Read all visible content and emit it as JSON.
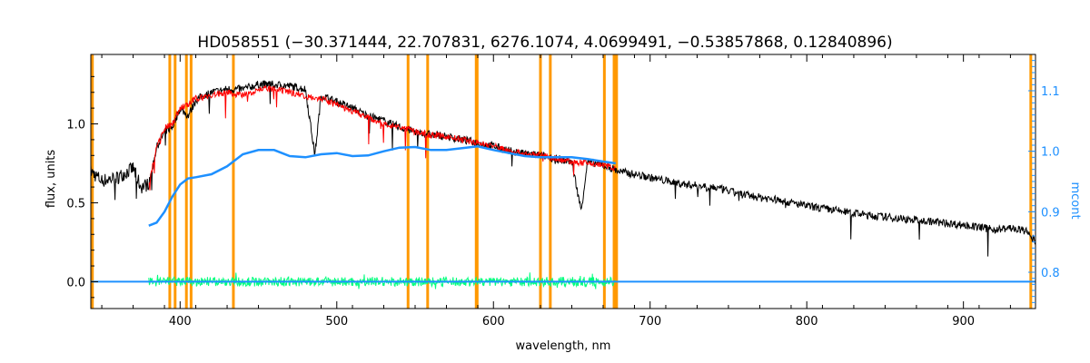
{
  "chart_data": {
    "type": "line",
    "title": "HD058551   (−30.371444, 22.707831, 6276.1074, 4.0699491, −0.53857868, 0.12840896)",
    "xlabel": "wavelength, nm",
    "ylabel": "flux, units",
    "ylabel_right": "mcont",
    "xlim": [
      343,
      946
    ],
    "ylim": [
      -0.17,
      1.44
    ],
    "ylim_right": [
      0.74,
      1.16
    ],
    "x_ticks": [
      400,
      500,
      600,
      700,
      800,
      900
    ],
    "x_tick_labels": [
      "400",
      "500",
      "600",
      "700",
      "800",
      "900"
    ],
    "y_ticks": [
      0.0,
      0.5,
      1.0
    ],
    "y_tick_labels": [
      "0.0",
      "0.5",
      "1.0"
    ],
    "y_right_ticks": [
      0.8,
      0.9,
      1.0,
      1.1
    ],
    "y_right_tick_labels": [
      "0.8",
      "0.9",
      "1.0",
      "1.1"
    ],
    "grid": false,
    "vertical_lines": [
      344,
      393.4,
      396.8,
      404,
      407,
      434,
      545.5,
      558,
      589,
      589.6,
      630,
      636.3,
      670.8,
      677,
      678.6,
      943
    ],
    "series": [
      {
        "role": "observed",
        "color": "#000000",
        "x": [
          343,
          350,
          360,
          370,
          375,
          380,
          385,
          390,
          395,
          400,
          405,
          410,
          415,
          420,
          430,
          440,
          450,
          460,
          470,
          480,
          486,
          490,
          500,
          510,
          520,
          530,
          540,
          550,
          560,
          570,
          580,
          590,
          600,
          610,
          620,
          630,
          640,
          650,
          656,
          660,
          670,
          680,
          700,
          720,
          740,
          760,
          780,
          800,
          820,
          840,
          860,
          880,
          900,
          920,
          930,
          940,
          946
        ],
        "y": [
          0.7,
          0.64,
          0.66,
          0.72,
          0.6,
          0.62,
          0.85,
          0.95,
          0.98,
          1.1,
          1.05,
          1.15,
          1.18,
          1.2,
          1.22,
          1.22,
          1.25,
          1.25,
          1.24,
          1.22,
          0.8,
          1.18,
          1.14,
          1.1,
          1.05,
          1.02,
          0.98,
          0.95,
          0.93,
          0.92,
          0.9,
          0.88,
          0.86,
          0.83,
          0.81,
          0.8,
          0.78,
          0.76,
          0.45,
          0.76,
          0.74,
          0.7,
          0.66,
          0.62,
          0.6,
          0.55,
          0.52,
          0.48,
          0.45,
          0.42,
          0.4,
          0.38,
          0.36,
          0.33,
          0.34,
          0.32,
          0.25
        ]
      },
      {
        "role": "model",
        "color": "#ff0000",
        "x": [
          380,
          385,
          390,
          395,
          400,
          405,
          410,
          415,
          420,
          430,
          440,
          450,
          460,
          470,
          480,
          490,
          500,
          510,
          520,
          530,
          540,
          550,
          560,
          570,
          580,
          590,
          600,
          610,
          620,
          630,
          640,
          650,
          660,
          670,
          678
        ],
        "y": [
          0.62,
          0.85,
          0.97,
          1.0,
          1.1,
          1.12,
          1.16,
          1.17,
          1.18,
          1.2,
          1.18,
          1.22,
          1.22,
          1.2,
          1.18,
          1.16,
          1.12,
          1.08,
          1.04,
          1.0,
          0.98,
          0.95,
          0.93,
          0.92,
          0.9,
          0.88,
          0.86,
          0.83,
          0.81,
          0.8,
          0.78,
          0.76,
          0.75,
          0.74,
          0.72
        ]
      },
      {
        "role": "residual",
        "color": "#00ff7f",
        "x": [
          380,
          400,
          450,
          500,
          550,
          600,
          650,
          678
        ],
        "y": [
          0.0,
          0.0,
          0.0,
          0.0,
          0.0,
          0.0,
          0.0,
          0.0
        ]
      },
      {
        "role": "zero-line",
        "color": "#1e90ff",
        "x": [
          343,
          946
        ],
        "y": [
          0.0,
          0.0
        ]
      },
      {
        "role": "mcont",
        "axis": "right",
        "color": "#1e90ff",
        "x": [
          380,
          385,
          390,
          395,
          400,
          405,
          410,
          420,
          430,
          440,
          450,
          460,
          470,
          480,
          490,
          500,
          510,
          520,
          530,
          540,
          550,
          560,
          570,
          580,
          590,
          600,
          610,
          620,
          630,
          640,
          650,
          660,
          670,
          678
        ],
        "y": [
          0.877,
          0.882,
          0.9,
          0.925,
          0.945,
          0.955,
          0.957,
          0.962,
          0.975,
          0.995,
          1.002,
          1.002,
          0.992,
          0.99,
          0.995,
          0.997,
          0.992,
          0.993,
          1.0,
          1.006,
          1.007,
          1.002,
          1.002,
          1.005,
          1.008,
          1.002,
          0.997,
          0.992,
          0.99,
          0.99,
          0.99,
          0.987,
          0.983,
          0.98
        ]
      }
    ]
  }
}
